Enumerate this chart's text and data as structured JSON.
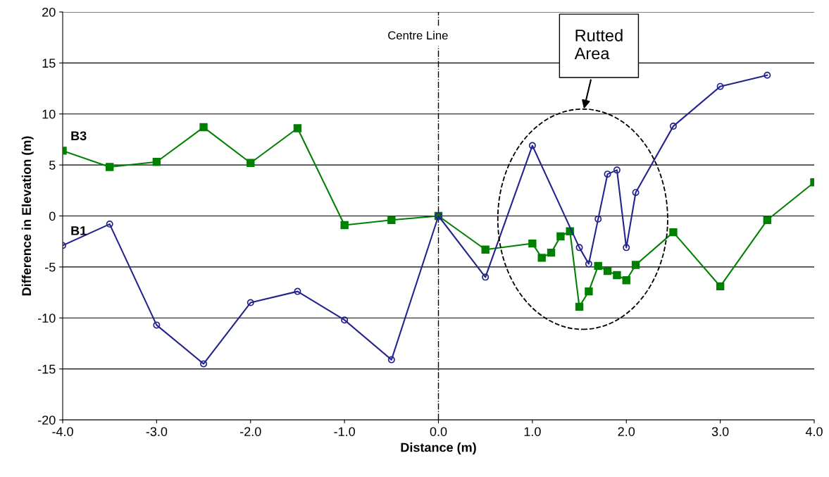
{
  "chart_data": {
    "type": "line",
    "xlabel": "Distance (m)",
    "ylabel": "Difference in Elevation (m)",
    "series": [
      {
        "name": "B3",
        "color": "#008000",
        "marker": "square",
        "x": [
          -4,
          -3.5,
          -3,
          -2.5,
          -2,
          -1.5,
          -1,
          -0.5,
          0,
          0.5,
          1.0,
          1.1,
          1.2,
          1.3,
          1.4,
          1.5,
          1.6,
          1.7,
          1.8,
          1.9,
          2.0,
          2.1,
          2.5,
          3.0,
          3.5,
          4.0
        ],
        "values": [
          6.4,
          4.8,
          5.3,
          8.7,
          5.2,
          8.6,
          -0.9,
          -0.4,
          0,
          -3.3,
          -2.7,
          -4.1,
          -3.6,
          -2.0,
          -1.5,
          -8.9,
          -7.4,
          -4.9,
          -5.4,
          -5.8,
          -6.3,
          -4.8,
          -1.6,
          -6.9,
          -0.4,
          3.3
        ]
      },
      {
        "name": "B1",
        "color": "#23238e",
        "marker": "circle",
        "x": [
          -4,
          -3.5,
          -3,
          -2.5,
          -2,
          -1.5,
          -1,
          -0.5,
          0,
          0.5,
          1.0,
          1.5,
          1.6,
          1.7,
          1.8,
          1.9,
          2.0,
          2.1,
          2.5,
          3.0,
          3.5
        ],
        "values": [
          -2.9,
          -0.8,
          -10.7,
          -14.5,
          -8.5,
          -7.4,
          -10.2,
          -14.1,
          0,
          -6.0,
          6.9,
          -3.1,
          -4.7,
          -0.3,
          4.1,
          4.5,
          -3.1,
          2.3,
          8.8,
          12.7,
          13.8
        ]
      }
    ],
    "xlim": [
      -4,
      4
    ],
    "xticks": [
      {
        "value": -4,
        "label": "-4.0"
      },
      {
        "value": -3,
        "label": "-3.0"
      },
      {
        "value": -2,
        "label": "-2.0"
      },
      {
        "value": -1,
        "label": "-1.0"
      },
      {
        "value": 0,
        "label": "0.0"
      },
      {
        "value": 1,
        "label": "1.0"
      },
      {
        "value": 2,
        "label": "2.0"
      },
      {
        "value": 3,
        "label": "3.0"
      },
      {
        "value": 4,
        "label": "4.0"
      }
    ],
    "ylim": [
      -20,
      20
    ],
    "yticks": [
      -20,
      -15,
      -10,
      -5,
      0,
      5,
      10,
      15,
      20
    ],
    "ref_lines": [
      {
        "axis": "x",
        "value": 0,
        "label": "Centre Line",
        "color": "#000000",
        "line_style": "dashdot"
      }
    ],
    "annotations": [
      "Rutted Area"
    ],
    "grid": "y",
    "legend": false
  }
}
